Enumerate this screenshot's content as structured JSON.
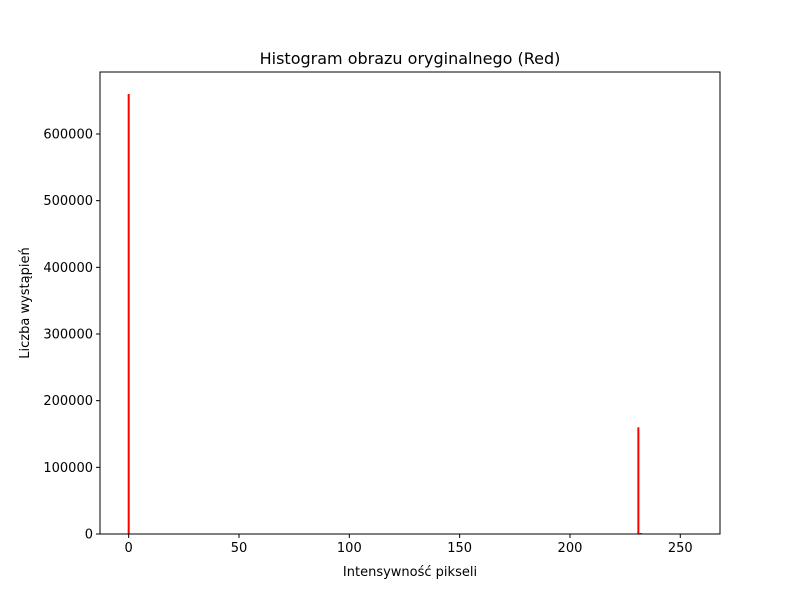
{
  "chart_data": {
    "type": "bar",
    "title": "Histogram obrazu oryginalnego (Red)",
    "xlabel": "Intensywność pikseli",
    "ylabel": "Liczba wystąpień",
    "xlim": [
      -13,
      268
    ],
    "ylim": [
      0,
      693000
    ],
    "xticks": [
      0,
      50,
      100,
      150,
      200,
      250
    ],
    "yticks": [
      0,
      100000,
      200000,
      300000,
      400000,
      500000,
      600000
    ],
    "grid": false,
    "bar_color": "#ff0000",
    "series": [
      {
        "x": [
          0,
          231,
          232
        ],
        "values": [
          660000,
          160000,
          1500
        ]
      }
    ]
  }
}
